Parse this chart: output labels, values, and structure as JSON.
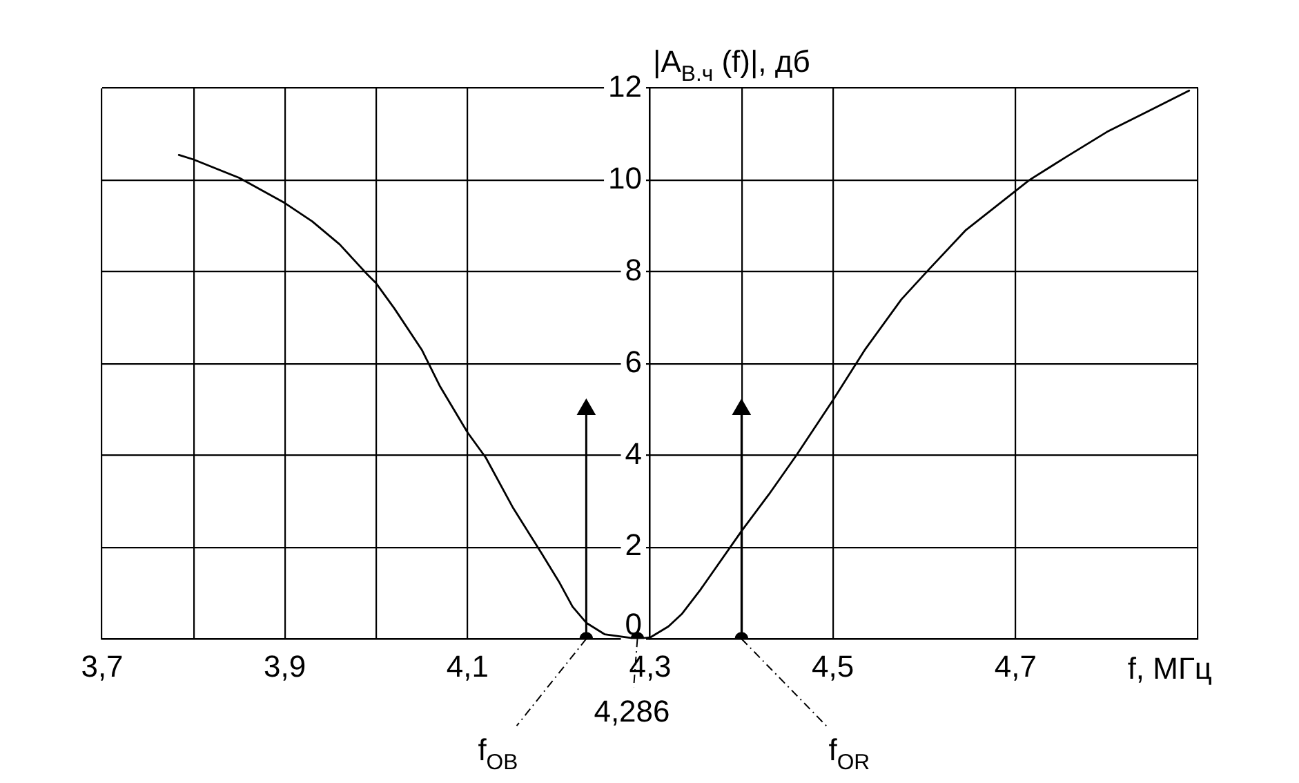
{
  "chart_data": {
    "type": "line",
    "xlabel": "f, МГц",
    "ylabel": "|А$_{В.ч}$ (f)|, дб",
    "xlim": [
      3.7,
      4.9
    ],
    "xticks": [
      {
        "value": 3.7,
        "label": "3,7"
      },
      {
        "value": 3.8,
        "label": null
      },
      {
        "value": 3.9,
        "label": "3,9"
      },
      {
        "value": 4.0,
        "label": null
      },
      {
        "value": 4.1,
        "label": "4,1"
      },
      {
        "value": 4.3,
        "label": "4,3"
      },
      {
        "value": 4.4,
        "label": null
      },
      {
        "value": 4.5,
        "label": "4,5"
      },
      {
        "value": 4.7,
        "label": "4,7"
      },
      {
        "value": 4.9,
        "label": null
      }
    ],
    "ylim": [
      0,
      12
    ],
    "yticks": [
      0,
      2,
      4,
      6,
      8,
      10,
      12
    ],
    "grid": true,
    "series": [
      {
        "type": "line",
        "color": "#000000",
        "marker": "none",
        "line_style": "solid",
        "x": [
          3.784,
          3.8,
          3.85,
          3.9,
          3.93,
          3.96,
          3.99,
          4.0,
          4.02,
          4.05,
          4.07,
          4.1,
          4.12,
          4.15,
          4.18,
          4.2,
          4.215,
          4.23,
          4.25,
          4.286,
          4.3,
          4.32,
          4.335,
          4.355,
          4.4,
          4.43,
          4.46,
          4.5,
          4.535,
          4.575,
          4.605,
          4.645,
          4.68,
          4.715,
          4.755,
          4.8,
          4.845,
          4.89
        ],
        "values": [
          10.55,
          10.45,
          10.05,
          9.5,
          9.1,
          8.6,
          7.95,
          7.75,
          7.2,
          6.3,
          5.5,
          4.5,
          3.95,
          2.85,
          1.9,
          1.25,
          0.7,
          0.35,
          0.1,
          0,
          0.03,
          0.27,
          0.55,
          1.07,
          2.35,
          3.15,
          4.0,
          5.2,
          6.3,
          7.4,
          8.05,
          8.9,
          9.45,
          10.0,
          10.5,
          11.05,
          11.5,
          11.95
        ]
      },
      {
        "type": "lollipop",
        "color": "#000000",
        "marker": "triangle",
        "x": [
          4.23,
          4.4
        ],
        "values": [
          5,
          5
        ]
      },
      {
        "type": "scatter",
        "color": "#000000",
        "marker": "circle",
        "x": [
          4.23,
          4.286,
          4.4
        ],
        "values": [
          0,
          0,
          0
        ]
      }
    ],
    "annotations": [
      {
        "text": "f$_{OB}$",
        "x": 4.23,
        "y": 0
      },
      {
        "text": "4,286",
        "x": 4.286,
        "y": 0
      },
      {
        "text": "f$_{OR}$",
        "x": 4.4,
        "y": 0
      }
    ]
  }
}
